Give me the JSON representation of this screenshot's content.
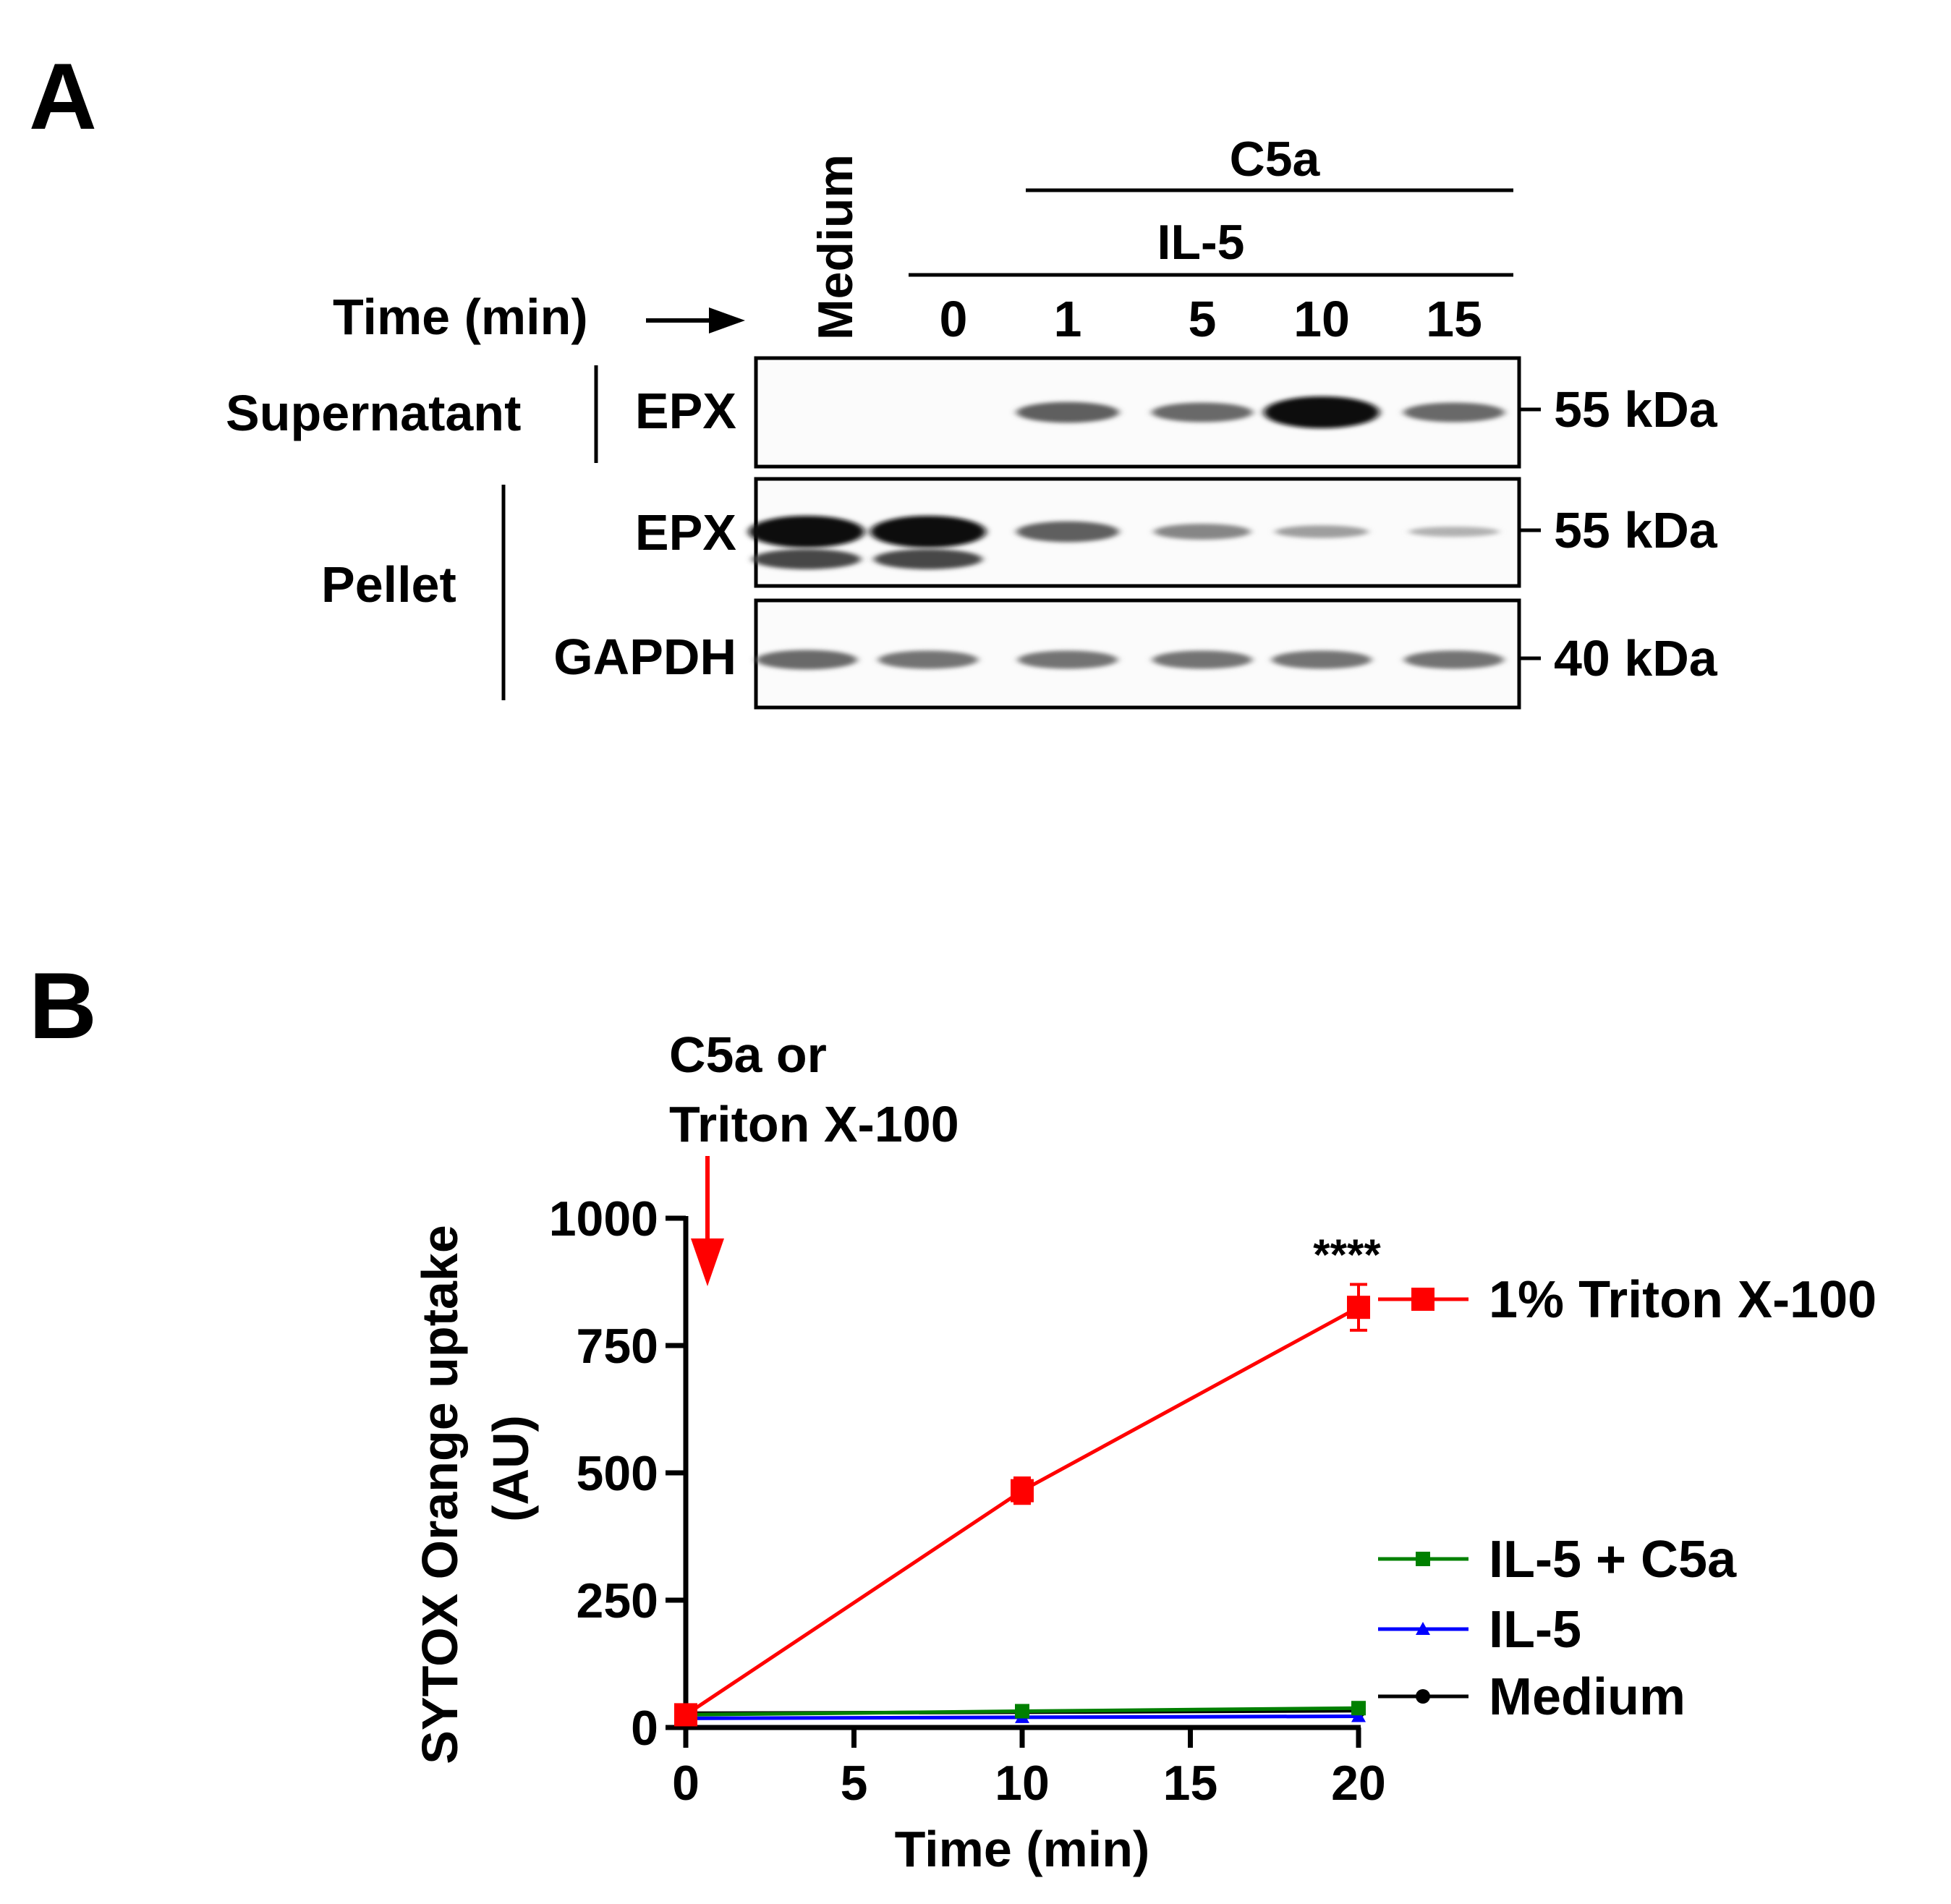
{
  "panel_a": {
    "letter": "A",
    "header_top": "C5a",
    "header_mid": "IL-5",
    "time_label": "Time (min)",
    "medium_label": "Medium",
    "time_points": [
      "0",
      "1",
      "5",
      "10",
      "15"
    ],
    "fraction_supernatant": "Supernatant",
    "fraction_pellet": "Pellet",
    "blots": [
      {
        "label": "EPX",
        "marker": "55 kDa",
        "fraction": "supernatant",
        "band_intensity": [
          0,
          0,
          0.55,
          0.5,
          1.0,
          0.5
        ]
      },
      {
        "label": "EPX",
        "marker": "55 kDa",
        "fraction": "pellet",
        "band_intensity": [
          1.0,
          1.0,
          0.55,
          0.35,
          0.22,
          0.12
        ]
      },
      {
        "label": "GAPDH",
        "marker": "40 kDa",
        "fraction": "pellet",
        "band_intensity": [
          0.5,
          0.45,
          0.45,
          0.45,
          0.45,
          0.45
        ]
      }
    ]
  },
  "panel_b": {
    "letter": "B",
    "annotation_line1": "C5a or",
    "annotation_line2": "Triton X-100",
    "significance": "****",
    "colors": {
      "triton": "#ff0000",
      "il5_c5a": "#008000",
      "il5": "#0000ff",
      "medium": "#000000"
    }
  },
  "chart_data": {
    "type": "line",
    "xlabel": "Time (min)",
    "ylabel_line1": "SYTOX Orange uptake",
    "ylabel_line2": "(AU)",
    "xlim": [
      0,
      20
    ],
    "ylim": [
      0,
      1000
    ],
    "xticks": [
      0,
      5,
      10,
      15,
      20
    ],
    "yticks": [
      0,
      250,
      500,
      750,
      1000
    ],
    "x": [
      0,
      10,
      20
    ],
    "series": [
      {
        "name": "1% Triton X-100",
        "values": [
          25,
          465,
          825
        ],
        "errors": [
          5,
          25,
          45
        ],
        "color": "#ff0000",
        "marker": "square"
      },
      {
        "name": "IL-5 + C5a",
        "values": [
          25,
          32,
          38
        ],
        "errors": [
          2,
          3,
          3
        ],
        "color": "#008000",
        "marker": "square"
      },
      {
        "name": "IL-5",
        "values": [
          18,
          20,
          22
        ],
        "errors": [
          2,
          2,
          2
        ],
        "color": "#0000ff",
        "marker": "triangle"
      },
      {
        "name": "Medium",
        "values": [
          28,
          30,
          33
        ],
        "errors": [
          2,
          2,
          2
        ],
        "color": "#000000",
        "marker": "circle"
      }
    ],
    "legend_position": "right"
  }
}
